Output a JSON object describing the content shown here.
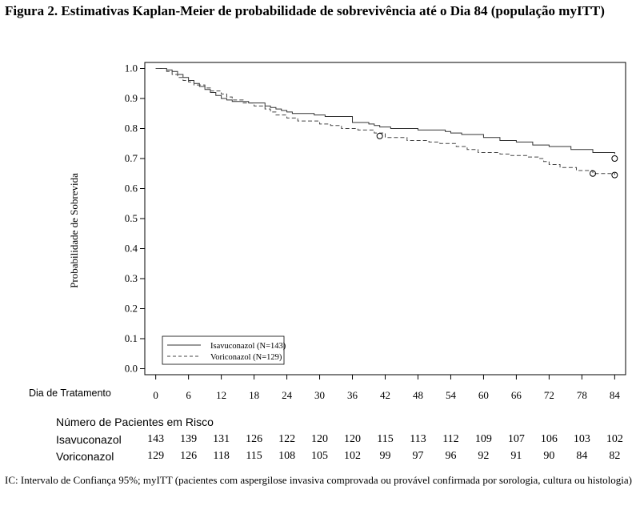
{
  "figure_title": "Figura 2. Estimativas Kaplan-Meier de probabilidade de sobrevivência até o Dia 84 (população myITT)",
  "xaxis_label": "Dia de Tratamento",
  "risk_table": {
    "title": "Número de Pacientes em Risco",
    "rows": [
      {
        "label": "Isavuconazol",
        "values": [
          143,
          139,
          131,
          126,
          122,
          120,
          120,
          115,
          113,
          112,
          109,
          107,
          106,
          103,
          102
        ]
      },
      {
        "label": "Voriconazol",
        "values": [
          129,
          126,
          118,
          115,
          108,
          105,
          102,
          99,
          97,
          96,
          92,
          91,
          90,
          84,
          82
        ]
      }
    ]
  },
  "footnote": "IC: Intervalo de Confiança 95%; myITT (pacientes com aspergilose invasiva comprovada ou provável confirmada por sorologia, cultura ou histologia)",
  "chart_data": {
    "type": "line",
    "step": true,
    "ylabel": "Probabilidade de Sobrevida",
    "xlabel": "Dia de Tratamento",
    "xlim": [
      -2,
      86
    ],
    "ylim": [
      -0.02,
      1.02
    ],
    "xticks": [
      0,
      6,
      12,
      18,
      24,
      30,
      36,
      42,
      48,
      54,
      60,
      66,
      72,
      78,
      84
    ],
    "yticks": [
      "0.0",
      "0.1",
      "0.2",
      "0.3",
      "0.4",
      "0.5",
      "0.6",
      "0.7",
      "0.8",
      "0.9",
      "1.0"
    ],
    "legend": {
      "position": "bottom-left"
    },
    "series": [
      {
        "name": "Isavuconazol (N=143)",
        "style": "solid",
        "color": "#333333",
        "x": [
          0,
          2,
          3,
          4,
          5,
          6,
          7,
          8,
          9,
          10,
          11,
          12,
          13,
          14,
          17,
          20,
          21,
          22,
          23,
          24,
          25,
          29,
          31,
          36,
          39,
          40,
          41,
          43,
          48,
          53,
          54,
          56,
          60,
          63,
          66,
          69,
          72,
          76,
          80,
          84
        ],
        "y": [
          1.0,
          0.995,
          0.99,
          0.98,
          0.97,
          0.96,
          0.95,
          0.94,
          0.93,
          0.92,
          0.91,
          0.9,
          0.895,
          0.89,
          0.885,
          0.875,
          0.87,
          0.865,
          0.86,
          0.855,
          0.85,
          0.845,
          0.84,
          0.82,
          0.815,
          0.81,
          0.805,
          0.8,
          0.795,
          0.79,
          0.785,
          0.78,
          0.77,
          0.76,
          0.755,
          0.745,
          0.74,
          0.73,
          0.72,
          0.715
        ],
        "censored": [
          [
            84,
            0.7
          ]
        ]
      },
      {
        "name": "Voriconazol (N=129)",
        "style": "dashed",
        "color": "#444444",
        "x": [
          0,
          2,
          3,
          4,
          5,
          6,
          7,
          9,
          10,
          12,
          13,
          14,
          16,
          18,
          20,
          21,
          22,
          24,
          26,
          30,
          32,
          34,
          37,
          40,
          42,
          46,
          50,
          52,
          55,
          57,
          59,
          63,
          65,
          68,
          70,
          71,
          72,
          74,
          77,
          80,
          84
        ],
        "y": [
          1.0,
          0.99,
          0.98,
          0.97,
          0.96,
          0.955,
          0.945,
          0.935,
          0.925,
          0.915,
          0.905,
          0.895,
          0.885,
          0.875,
          0.865,
          0.855,
          0.845,
          0.835,
          0.825,
          0.815,
          0.81,
          0.8,
          0.795,
          0.785,
          0.77,
          0.76,
          0.755,
          0.75,
          0.74,
          0.73,
          0.72,
          0.715,
          0.71,
          0.705,
          0.7,
          0.69,
          0.68,
          0.67,
          0.66,
          0.65,
          0.645
        ],
        "censored": [
          [
            41,
            0.775
          ],
          [
            80,
            0.65
          ],
          [
            84,
            0.645
          ]
        ]
      }
    ]
  }
}
